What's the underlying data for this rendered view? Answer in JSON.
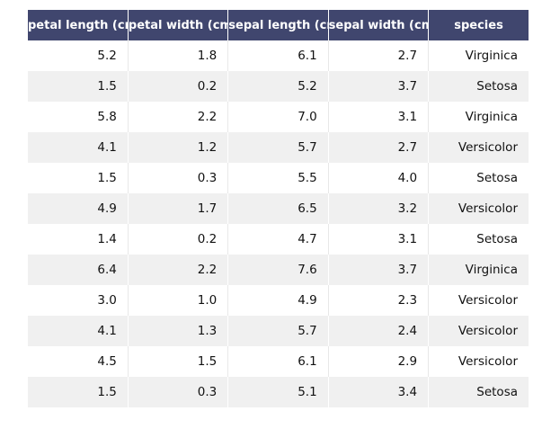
{
  "chart_data": {
    "type": "table",
    "columns": [
      "petal length (cm)",
      "petal width (cm)",
      "sepal length (cm)",
      "sepal width (cm)",
      "species"
    ],
    "rows": [
      [
        "5.2",
        "1.8",
        "6.1",
        "2.7",
        "Virginica"
      ],
      [
        "1.5",
        "0.2",
        "5.2",
        "3.7",
        "Setosa"
      ],
      [
        "5.8",
        "2.2",
        "7.0",
        "3.1",
        "Virginica"
      ],
      [
        "4.1",
        "1.2",
        "5.7",
        "2.7",
        "Versicolor"
      ],
      [
        "1.5",
        "0.3",
        "5.5",
        "4.0",
        "Setosa"
      ],
      [
        "4.9",
        "1.7",
        "6.5",
        "3.2",
        "Versicolor"
      ],
      [
        "1.4",
        "0.2",
        "4.7",
        "3.1",
        "Setosa"
      ],
      [
        "6.4",
        "2.2",
        "7.6",
        "3.7",
        "Virginica"
      ],
      [
        "3.0",
        "1.0",
        "4.9",
        "2.3",
        "Versicolor"
      ],
      [
        "4.1",
        "1.3",
        "5.7",
        "2.4",
        "Versicolor"
      ],
      [
        "4.5",
        "1.5",
        "6.1",
        "2.9",
        "Versicolor"
      ],
      [
        "1.5",
        "0.3",
        "5.1",
        "3.4",
        "Setosa"
      ]
    ],
    "header_color": "#40466e",
    "header_text_color": "#ffffff",
    "stripe_color": "#f0f0f0",
    "row_color": "#ffffff"
  }
}
